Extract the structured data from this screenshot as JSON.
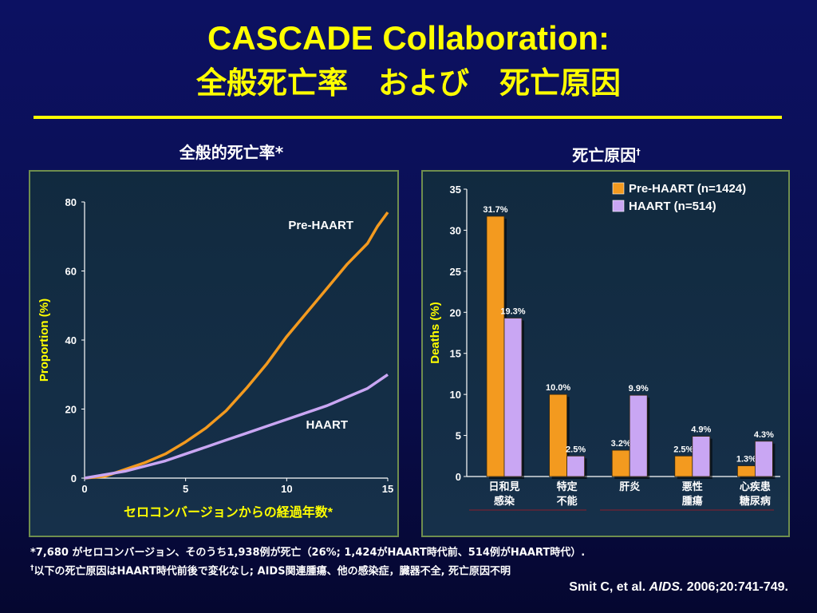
{
  "slide": {
    "title_line1": "CASCADE Collaboration:",
    "title_line2": "全般死亡率　および　死亡原因",
    "left_subtitle": "全般的死亡率*",
    "right_subtitle": "死亡原因",
    "right_subtitle_mark": "†",
    "footnote1": "*7,680 がセロコンバージョン、そのうち1,938例が死亡（26%; 1,424がHAART時代前、514例がHAART時代）.",
    "footnote2_mark": "†",
    "footnote2": "以下の死亡原因はHAART時代前後で変化なし; AIDS関連腫瘍、他の感染症，臓器不全, 死亡原因不明",
    "citation_author": "Smit C, et al. ",
    "citation_journal": "AIDS.",
    "citation_rest": " 2006;20:741-749.",
    "colors": {
      "title": "#ffff00",
      "pre_haart": "#f39a1f",
      "haart": "#c9a6f3"
    }
  },
  "chart_data": [
    {
      "type": "line",
      "xlabel": "セロコンバージョンからの経過年数*",
      "ylabel": "Proportion (%)",
      "xlim": [
        0,
        15
      ],
      "ylim": [
        0,
        80
      ],
      "xticks": [
        0,
        5,
        10,
        15
      ],
      "yticks": [
        0,
        20,
        40,
        60,
        80
      ],
      "series": [
        {
          "name": "Pre-HAART",
          "x": [
            0,
            1,
            2,
            3,
            4,
            5,
            6,
            7,
            8,
            9,
            10,
            11,
            12,
            13,
            14,
            14.5,
            15
          ],
          "y": [
            0,
            0.5,
            2.5,
            4.5,
            7,
            10.5,
            14.5,
            19.5,
            26,
            33,
            41,
            48,
            55,
            62,
            68,
            73,
            77
          ]
        },
        {
          "name": "HAART",
          "x": [
            0,
            1,
            2,
            3,
            4,
            5,
            6,
            7,
            8,
            9,
            10,
            11,
            12,
            13,
            14,
            15
          ],
          "y": [
            0,
            1,
            2,
            3.5,
            5,
            7,
            9,
            11,
            13,
            15,
            17,
            19,
            21,
            23.5,
            26,
            30
          ]
        }
      ]
    },
    {
      "type": "bar",
      "ylabel": "Deaths (%)",
      "ylim": [
        0,
        35
      ],
      "yticks": [
        0,
        5,
        10,
        15,
        20,
        25,
        30,
        35
      ],
      "categories": [
        "日和見\n感染",
        "特定\n不能",
        "肝炎",
        "悪性\n腫瘍",
        "心疾患\n糖尿病"
      ],
      "series": [
        {
          "name": "Pre-HAART (n=1424)",
          "values": [
            31.7,
            10.0,
            3.2,
            2.5,
            1.3
          ],
          "labels": [
            "31.7%",
            "10.0%",
            "3.2%",
            "2.5%",
            "1.3%"
          ]
        },
        {
          "name": "HAART (n=514)",
          "values": [
            19.3,
            2.5,
            9.9,
            4.9,
            4.3
          ],
          "labels": [
            "19.3%",
            "2.5%",
            "9.9%",
            "4.9%",
            "4.3%"
          ]
        }
      ]
    }
  ]
}
